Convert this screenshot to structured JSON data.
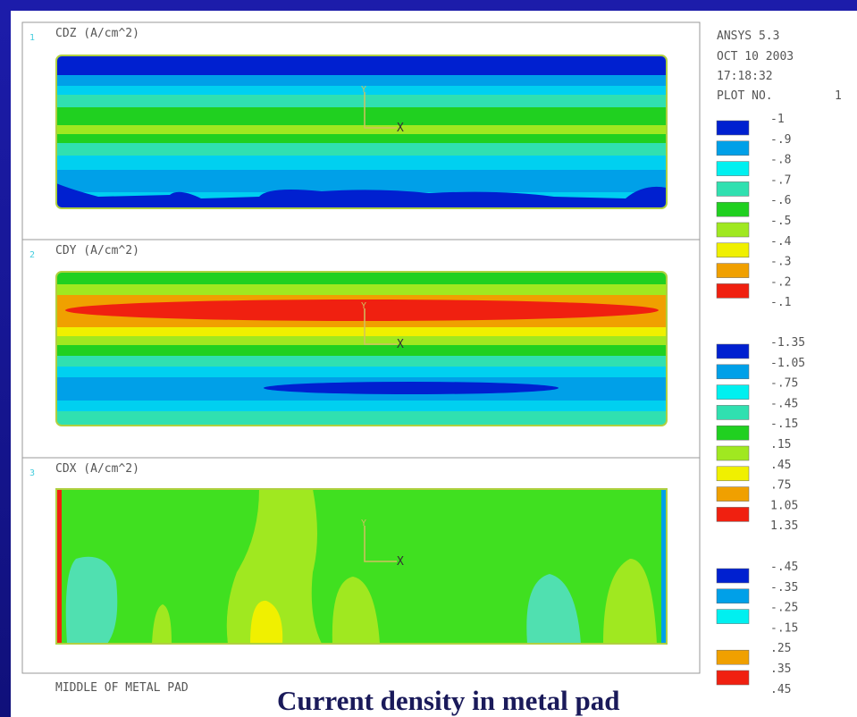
{
  "header": {
    "software": "ANSYS 5.3",
    "date": "OCT 10 2003",
    "time": "17:18:32",
    "plot_label": "PLOT NO.",
    "plot_no": "1"
  },
  "axes": {
    "x": "X",
    "y": "Y"
  },
  "panels": [
    {
      "index": "1",
      "title": "CDZ (A/cm^2)"
    },
    {
      "index": "2",
      "title": "CDY (A/cm^2)"
    },
    {
      "index": "3",
      "title": "CDX (A/cm^2)"
    }
  ],
  "legends": [
    {
      "labels": [
        "-1",
        "-.9",
        "-.8",
        "-.7",
        "-.6",
        "-.5",
        "-.4",
        "-.3",
        "-.2",
        "-.1"
      ]
    },
    {
      "labels": [
        "-1.35",
        "-1.05",
        "-.75",
        "-.45",
        "-.15",
        ".15",
        ".45",
        ".75",
        "1.05",
        "1.35"
      ]
    },
    {
      "labels": [
        "-.45",
        "-.35",
        "-.25",
        "-.15",
        ".25",
        ".35",
        ".45"
      ]
    }
  ],
  "footer": "MIDDLE OF METAL PAD",
  "caption": "Current density in metal pad"
}
